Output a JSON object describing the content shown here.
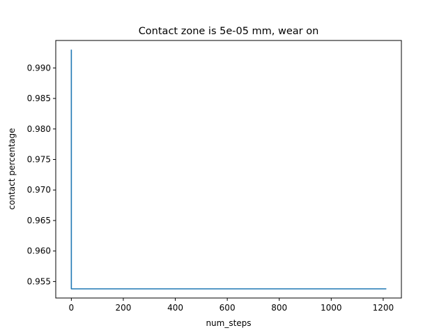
{
  "chart_data": {
    "type": "line",
    "title": "Contact zone is 5e-05 mm, wear on",
    "xlabel": "num_steps",
    "ylabel": "contact percentage",
    "xlim": [
      -60,
      1270
    ],
    "ylim": [
      0.9523,
      0.9945
    ],
    "xticks": [
      0,
      200,
      400,
      600,
      800,
      1000,
      1200
    ],
    "yticks": [
      0.955,
      0.96,
      0.965,
      0.97,
      0.975,
      0.98,
      0.985,
      0.99
    ],
    "ytick_labels": [
      "0.955",
      "0.960",
      "0.965",
      "0.970",
      "0.975",
      "0.980",
      "0.985",
      "0.990"
    ],
    "grid": false,
    "series": [
      {
        "color": "#1f77b4",
        "x": [
          0,
          0,
          1212
        ],
        "y": [
          0.993,
          0.9538,
          0.9538
        ]
      }
    ]
  }
}
